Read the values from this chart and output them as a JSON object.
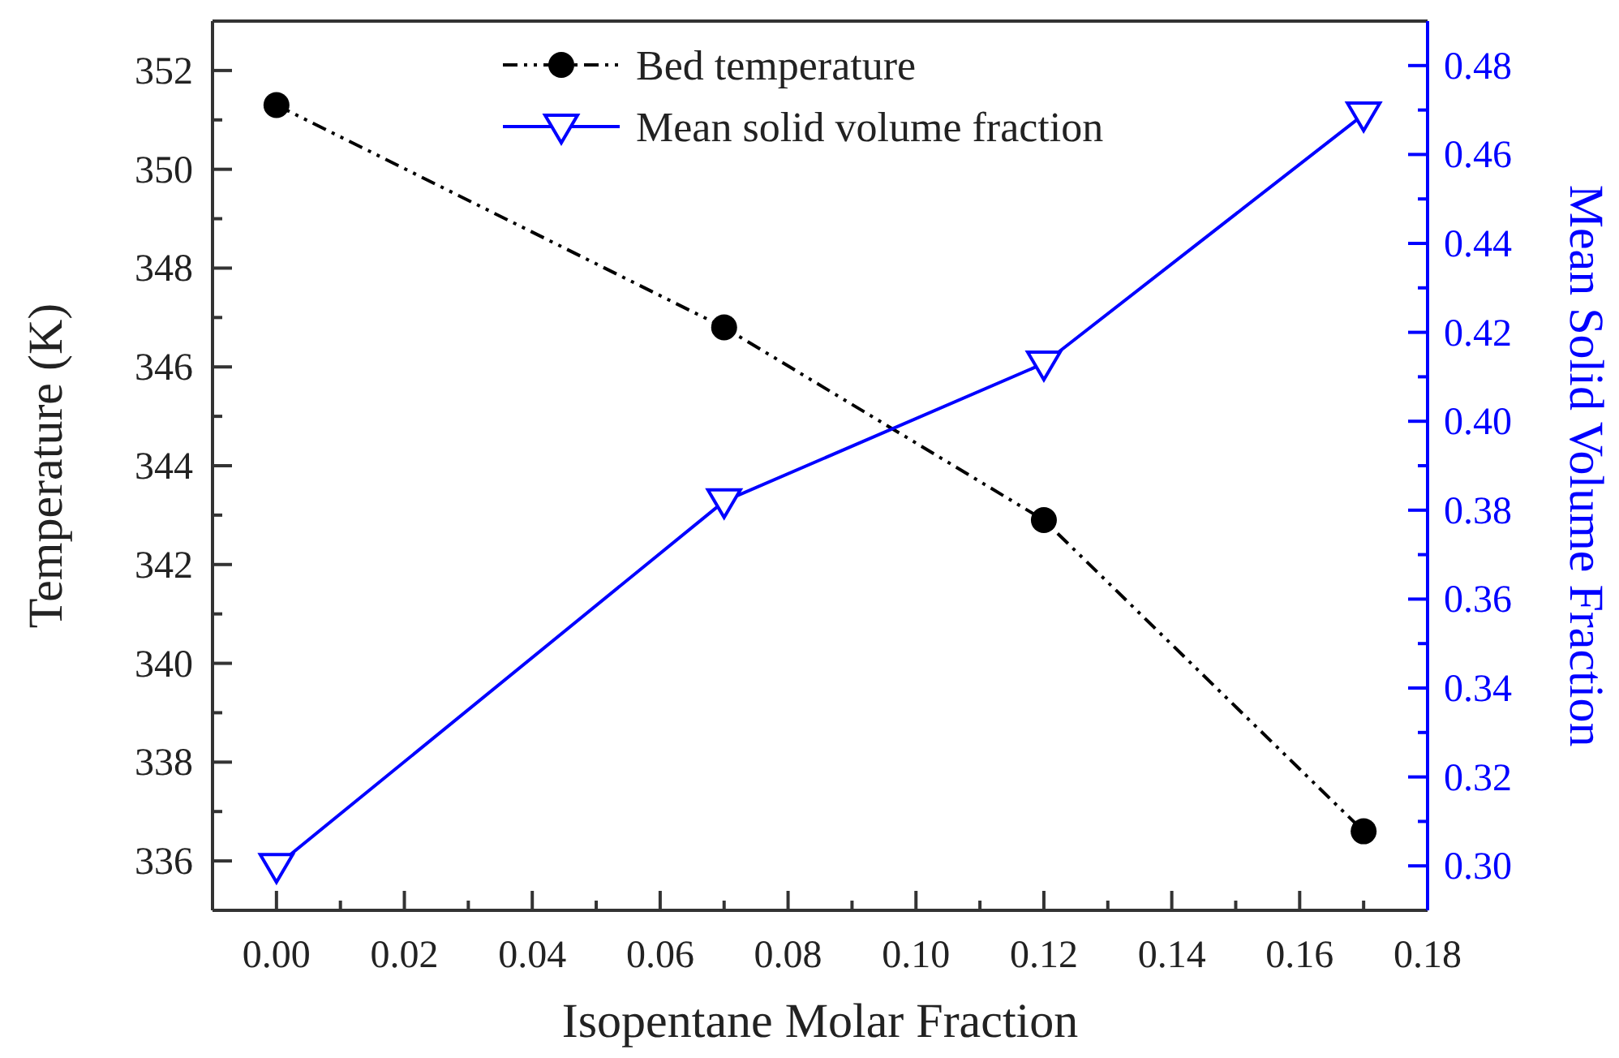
{
  "chart_data": {
    "type": "line",
    "xlabel": "Isopentane Molar Fraction",
    "ylabel": "Temperature (K)",
    "y2label": "Mean Solid Volume Fraction",
    "x": [
      0,
      0.07,
      0.12,
      0.17
    ],
    "series": [
      {
        "name": "Bed temperature",
        "color": "#000000",
        "values": [
          351.3,
          346.8,
          342.9,
          336.6
        ],
        "marker": "circle",
        "line_style": "dashed"
      },
      {
        "name": "Mean solid volume fraction",
        "color": "#0000ff",
        "values": [
          0.3,
          0.382,
          0.413,
          0.469
        ],
        "marker": "triangle",
        "line_style": "solid",
        "axis": "y2"
      }
    ],
    "xlim": [
      -0.01,
      0.18
    ],
    "xticks": [
      {
        "value": 0,
        "label": "0.00"
      },
      0.02,
      0.04,
      0.06,
      0.08,
      {
        "value": 0.1,
        "label": "0.10"
      },
      0.12,
      0.14,
      0.16,
      0.18
    ],
    "ylim": [
      335,
      353
    ],
    "yticks": [
      336,
      338,
      340,
      342,
      344,
      346,
      348,
      350,
      352
    ],
    "y2lim": [
      0.29,
      0.49
    ],
    "y2ticks": [
      {
        "value": 0.3,
        "label": "0.30"
      },
      0.32,
      0.34,
      0.36,
      0.38,
      {
        "value": 0.4,
        "label": "0.40"
      },
      0.42,
      0.44,
      0.46,
      0.48
    ],
    "legend": "top",
    "grid": false
  }
}
